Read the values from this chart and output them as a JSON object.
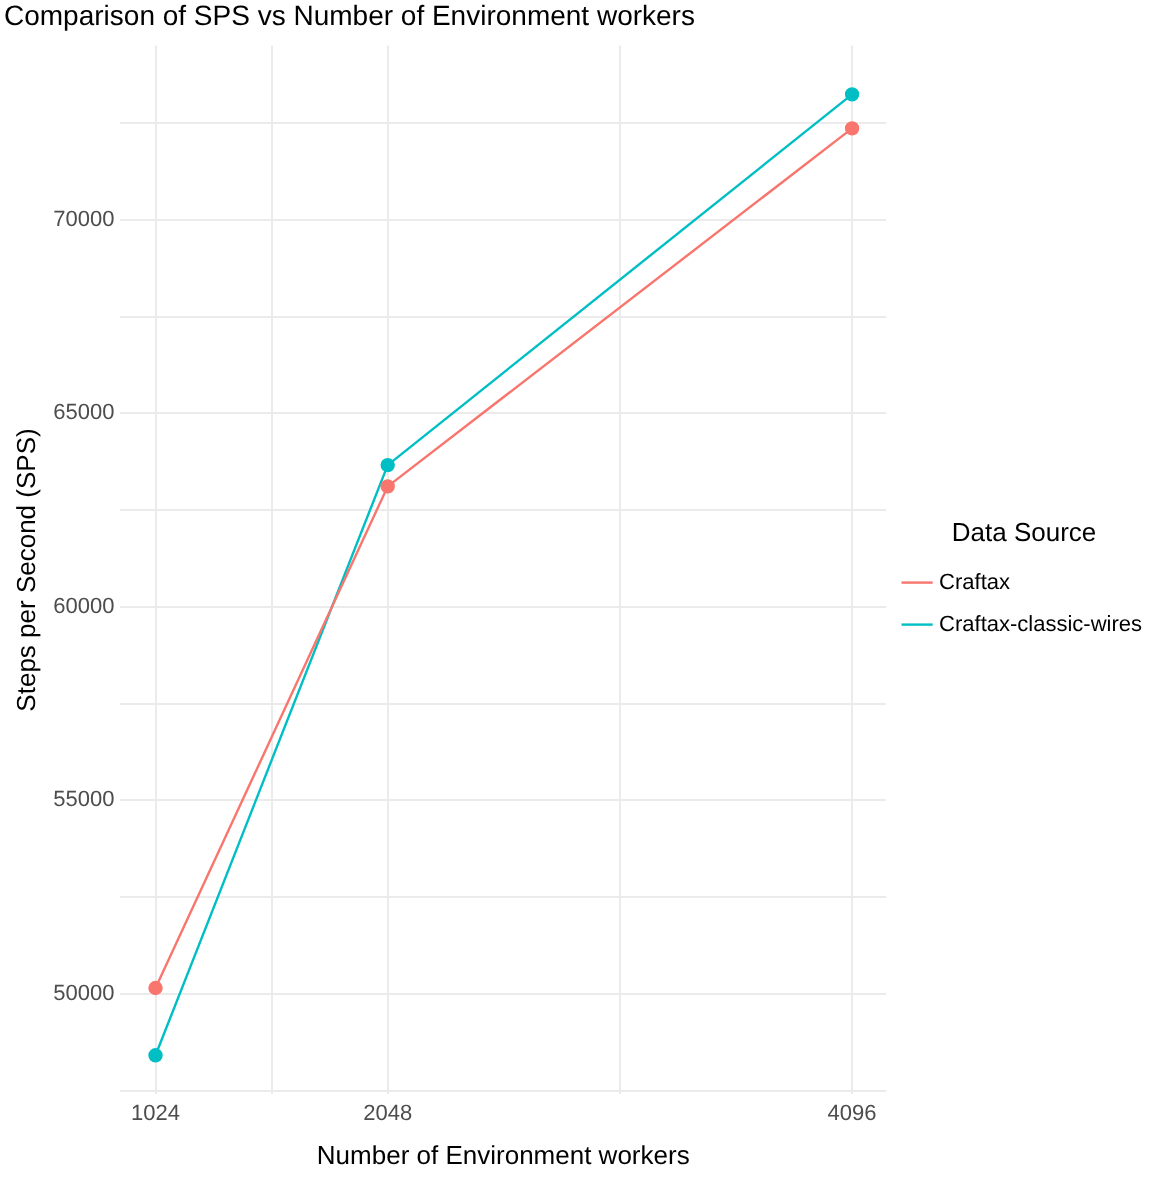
{
  "chart_data": {
    "type": "line",
    "title": "Comparison of SPS vs Number of Environment workers",
    "xlabel": "Number of Environment workers",
    "ylabel": "Steps per Second (SPS)",
    "legend_title": "Data Source",
    "x": [
      1024,
      2048,
      4096
    ],
    "series": [
      {
        "name": "Craftax",
        "color": "#f8766d",
        "values": [
          50150,
          63110,
          72360
        ]
      },
      {
        "name": "Craftax-classic-wires",
        "color": "#00bfc4",
        "values": [
          48410,
          63660,
          73240
        ]
      }
    ],
    "xlim": [
      869,
      4246
    ],
    "ylim": [
      47400,
      74500
    ],
    "xticks": [
      1024,
      {
        "value": 1536,
        "label": null
      },
      2048,
      {
        "value": 3072,
        "label": null
      },
      4096
    ],
    "yticks": [
      {
        "value": 47500,
        "label": null
      },
      50000,
      {
        "value": 52500,
        "label": null
      },
      55000,
      {
        "value": 57500,
        "label": null
      },
      60000,
      {
        "value": 62500,
        "label": null
      },
      65000,
      {
        "value": 67500,
        "label": null
      },
      70000,
      {
        "value": 72500,
        "label": null
      }
    ],
    "grid": true,
    "legend": "right",
    "marker": "circle",
    "line_style": "solid"
  }
}
